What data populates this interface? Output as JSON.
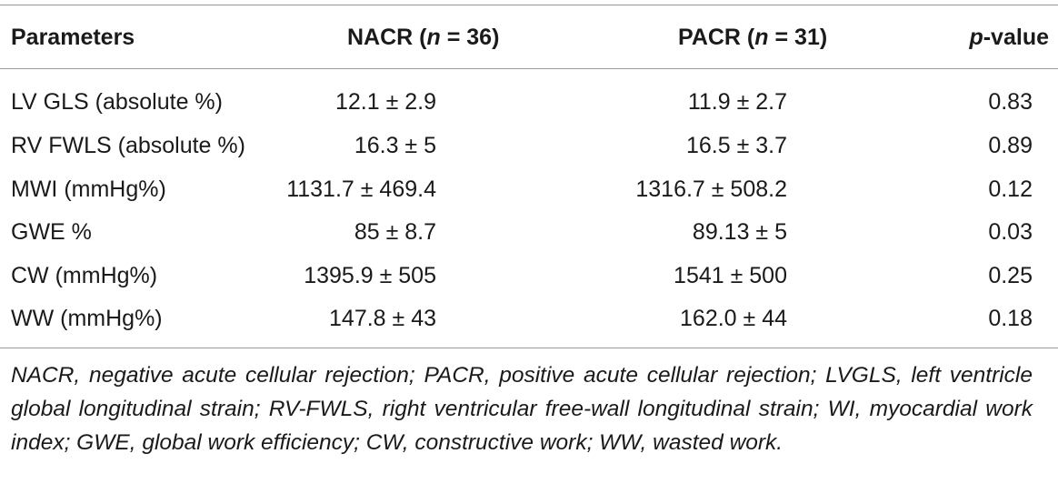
{
  "table": {
    "headers": {
      "parameters": "Parameters",
      "nacr_prefix": "NACR (",
      "nacr_n": "n",
      "nacr_suffix": " = 36)",
      "pacr_prefix": "PACR (",
      "pacr_n": "n",
      "pacr_suffix": " = 31)",
      "p_italic": "p",
      "p_suffix": "-value"
    },
    "rows": [
      {
        "parameter": "LV GLS (absolute %)",
        "nacr": "12.1 ± 2.9",
        "pacr": "11.9 ± 2.7",
        "p": "0.83"
      },
      {
        "parameter": "RV FWLS (absolute %)",
        "nacr": "16.3 ± 5",
        "pacr": "16.5 ± 3.7",
        "p": "0.89"
      },
      {
        "parameter": "MWI (mmHg%)",
        "nacr": "1131.7 ± 469.4",
        "pacr": "1316.7 ± 508.2",
        "p": "0.12"
      },
      {
        "parameter": "GWE %",
        "nacr": "85 ± 8.7",
        "pacr": "89.13 ± 5",
        "p": "0.03"
      },
      {
        "parameter": "CW (mmHg%)",
        "nacr": "1395.9 ± 505",
        "pacr": "1541 ± 500",
        "p": "0.25"
      },
      {
        "parameter": "WW (mmHg%)",
        "nacr": "147.8 ± 43",
        "pacr": "162.0 ± 44",
        "p": "0.18"
      }
    ]
  },
  "footnote": "NACR, negative acute cellular rejection; PACR, positive acute cellular rejection; LVGLS, left ventricle global longitudinal strain; RV-FWLS, right ventricular free-wall longitudinal strain; WI, myocardial work index; GWE, global work efficiency; CW, constructive work; WW, wasted work."
}
